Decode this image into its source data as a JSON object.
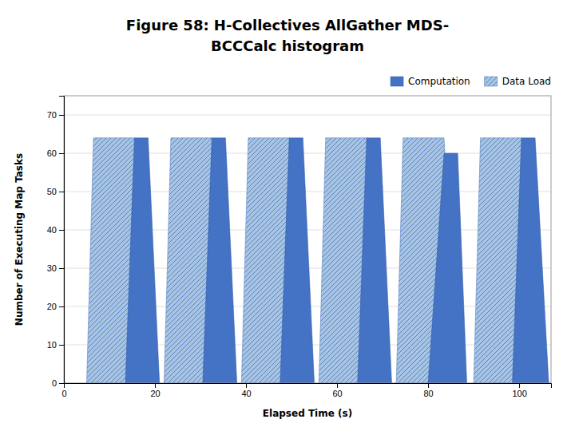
{
  "chart_data": {
    "type": "area",
    "title": "Figure 58: H-Collectives AllGather MDS-",
    "subtitle": "BCCCalc histogram",
    "xlabel": "Elapsed Time (s)",
    "ylabel": "Number of Executing Map Tasks",
    "xlim": [
      0,
      107
    ],
    "ylim": [
      0,
      75
    ],
    "xticks": [
      0,
      20,
      40,
      60,
      80,
      100
    ],
    "yticks": [
      0,
      10,
      20,
      30,
      40,
      50,
      60,
      70
    ],
    "grid": true,
    "legend": "upper right",
    "series": [
      {
        "name": "Computation",
        "color": "#4472C4",
        "x": [
          13.5,
          15.5,
          18.5,
          21.0,
          null,
          30.5,
          32.5,
          35.5,
          38.0,
          null,
          47.5,
          49.5,
          52.5,
          55.0,
          null,
          64.5,
          66.5,
          69.5,
          72.0,
          null,
          80.0,
          83.5,
          86.5,
          88.5,
          null,
          98.5,
          100.5,
          103.5,
          106.5
        ],
        "values": [
          0,
          64,
          64,
          0,
          null,
          0,
          64,
          64,
          0,
          null,
          0,
          64,
          64,
          0,
          null,
          0,
          64,
          64,
          0,
          null,
          0,
          60,
          60,
          0,
          null,
          0,
          64,
          64,
          0
        ]
      },
      {
        "name": "Data Load",
        "color": "#a8c4e0",
        "x": [
          5.0,
          6.5,
          15.5,
          18.5,
          null,
          22.0,
          23.5,
          32.5,
          35.5,
          null,
          39.0,
          40.5,
          49.5,
          52.5,
          null,
          56.0,
          57.5,
          66.5,
          69.5,
          null,
          73.0,
          74.5,
          83.5,
          86.5,
          null,
          90.0,
          91.5,
          100.5,
          103.5
        ],
        "values": [
          0,
          64,
          64,
          0,
          null,
          0,
          64,
          64,
          0,
          null,
          0,
          64,
          64,
          0,
          null,
          0,
          64,
          64,
          0,
          null,
          0,
          64,
          64,
          0,
          null,
          0,
          64,
          64,
          0
        ]
      }
    ]
  }
}
